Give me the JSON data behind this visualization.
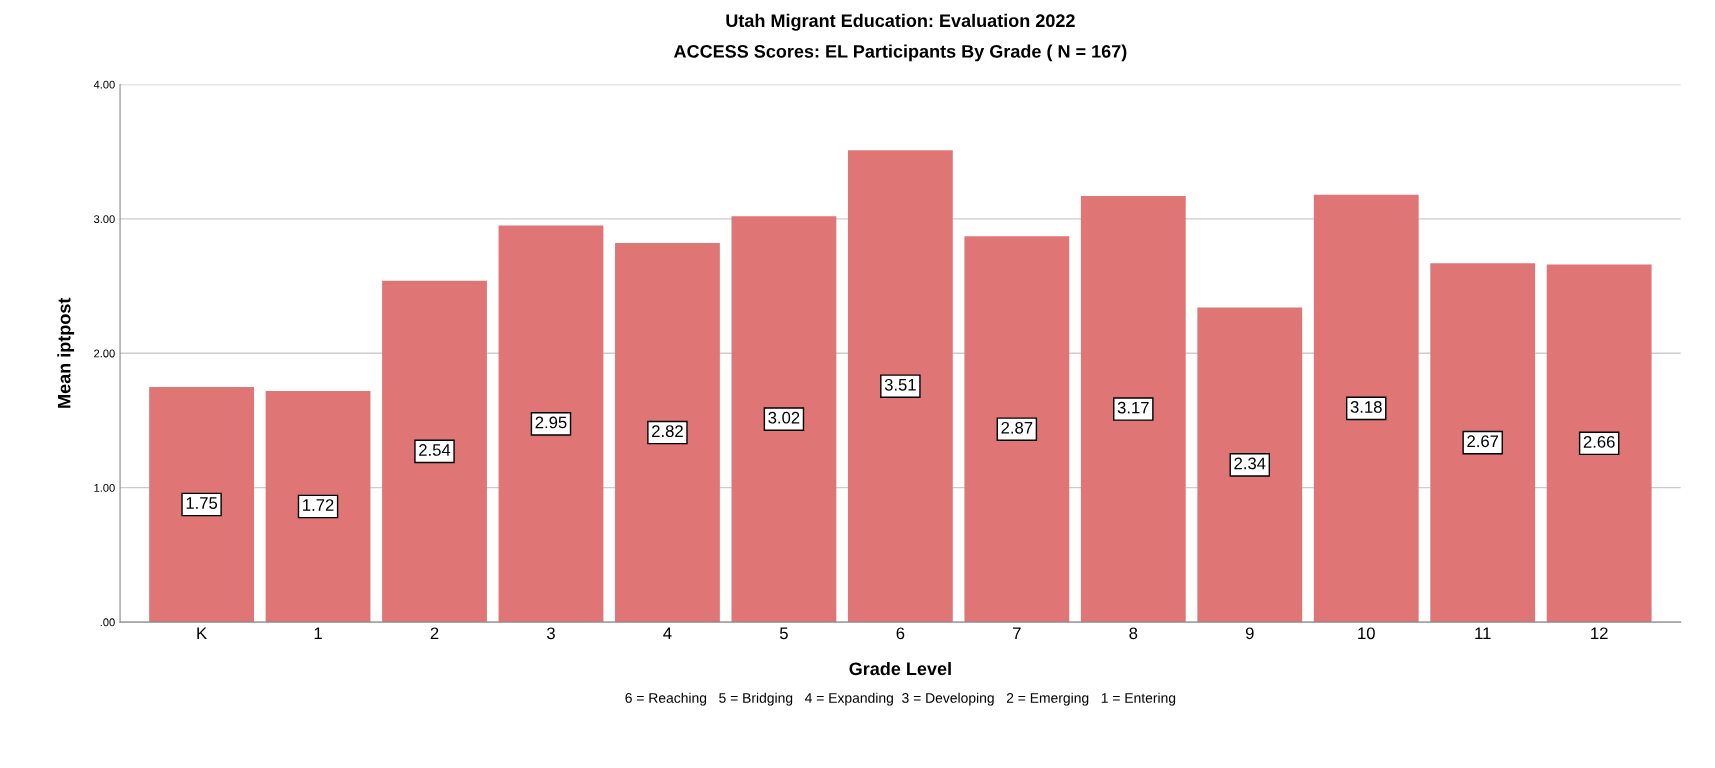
{
  "chart_data": {
    "type": "bar",
    "title": "Utah Migrant Education: Evaluation 2022",
    "subtitle": "ACCESS Scores: EL Participants By Grade ( N = 167)",
    "xlabel": "Grade Level",
    "ylabel": "Mean iptpost",
    "categories": [
      "K",
      "1",
      "2",
      "3",
      "4",
      "5",
      "6",
      "7",
      "8",
      "9",
      "10",
      "11",
      "12"
    ],
    "values": [
      1.75,
      1.72,
      2.54,
      2.95,
      2.82,
      3.02,
      3.51,
      2.87,
      3.17,
      2.34,
      3.18,
      2.67,
      2.66
    ],
    "color": "#e07575",
    "data_labels": true,
    "grid": "y",
    "ylim": [
      0,
      4
    ],
    "yticks": [
      {
        "value": 0,
        "label": ".00"
      },
      {
        "value": 1,
        "label": "1.00"
      },
      {
        "value": 2,
        "label": "2.00"
      },
      {
        "value": 3,
        "label": "3.00"
      },
      {
        "value": 4,
        "label": "4.00"
      }
    ],
    "annotations": [
      "6 = Reaching   5 = Bridging   4 = Expanding  3 = Developing   2 = Emerging   1 = Entering"
    ]
  }
}
